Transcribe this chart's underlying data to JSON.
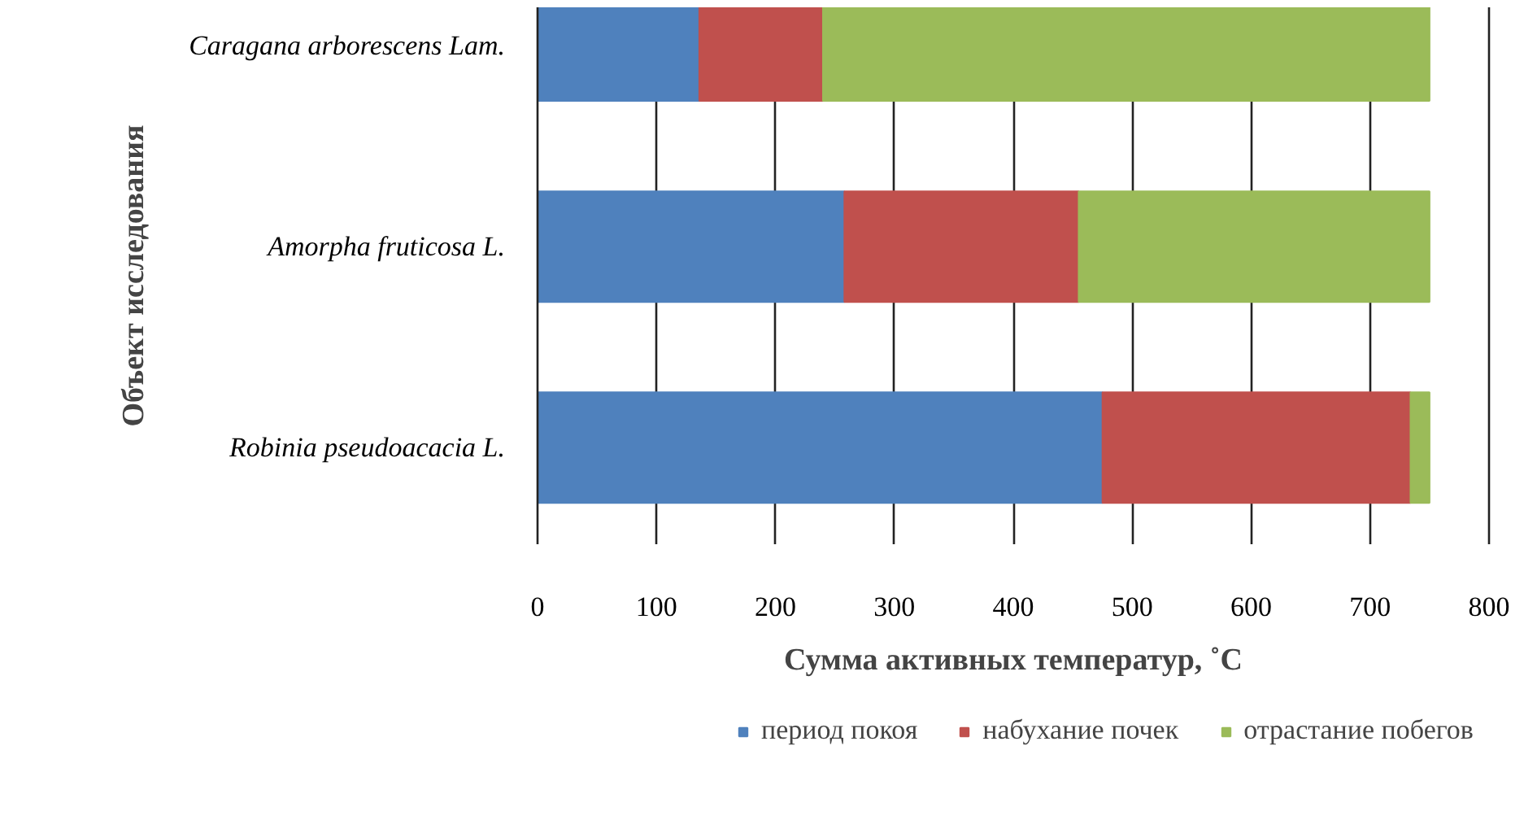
{
  "chart_data": {
    "type": "bar",
    "orientation": "horizontal",
    "stacked": true,
    "categories": [
      "Caragana arborescens Lam.",
      "Amorpha fruticosa L.",
      "Robinia pseudoacacia L."
    ],
    "series": [
      {
        "name": "период покоя",
        "color": "#4f81bd",
        "values": [
          136,
          258,
          475
        ]
      },
      {
        "name": "набухание почек",
        "color": "#c0504d",
        "values": [
          104,
          197,
          259
        ]
      },
      {
        "name": "отрастание побегов",
        "color": "#9bbb59",
        "values": [
          510,
          295,
          16
        ]
      }
    ],
    "xlabel": "Сумма активных температур, ˚С",
    "ylabel": "Объект исследования",
    "xlim": [
      0,
      800
    ],
    "xticks": [
      0,
      100,
      200,
      300,
      400,
      500,
      600,
      700,
      800
    ],
    "grid": "x",
    "legend": "bottom"
  }
}
